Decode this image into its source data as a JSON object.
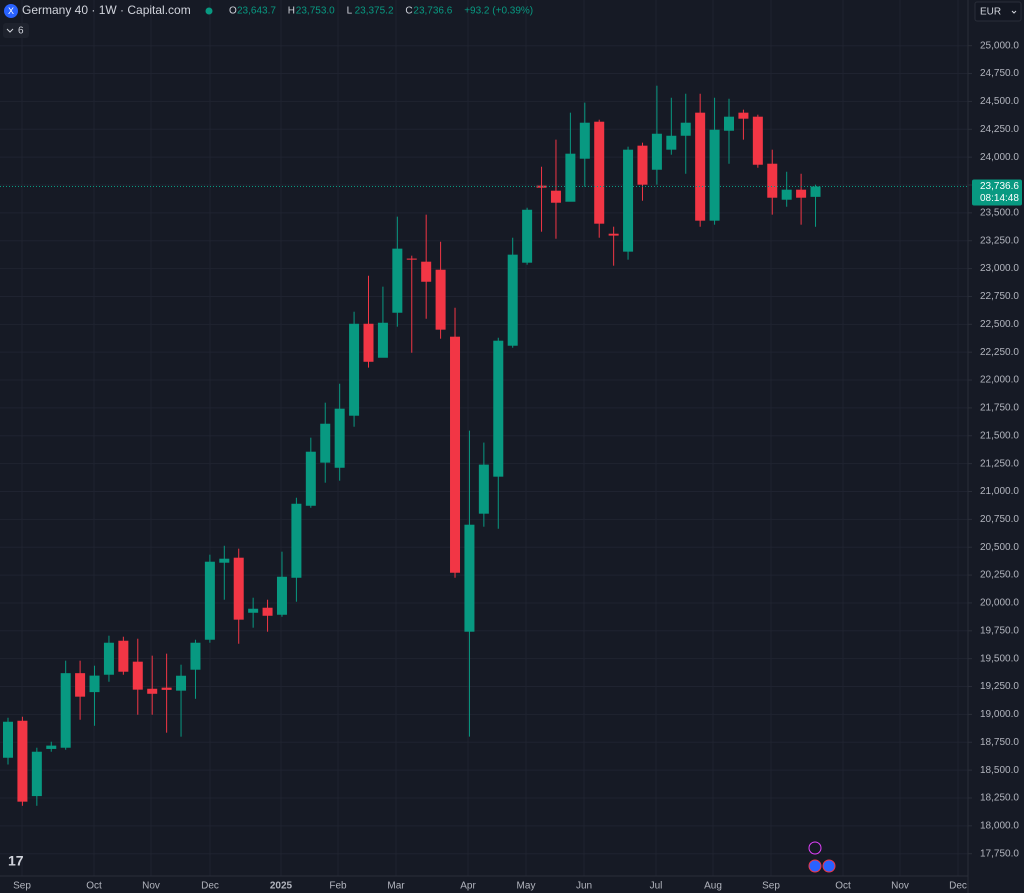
{
  "header": {
    "symbol": "Germany 40 · 1W · Capital.com",
    "legend": [
      {
        "key": "O",
        "value": "23,643.7"
      },
      {
        "key": "H",
        "value": "23,753.0"
      },
      {
        "key": "L",
        "value": "23,375.2"
      },
      {
        "key": "C",
        "value": "23,736.6"
      }
    ],
    "change": "+93.2 (+0.39%)",
    "indicator_count": "6",
    "currency": "EUR"
  },
  "price_label": {
    "price": "23,736.6",
    "countdown": "08:14:48"
  },
  "chart_data": {
    "type": "candlestick",
    "up_color": "#089981",
    "down_color": "#f23645",
    "grid": true,
    "x_labels": [
      "Sep",
      "Oct",
      "Nov",
      "Dec",
      "2025",
      "Feb",
      "Mar",
      "Apr",
      "May",
      "Jun",
      "Jul",
      "Aug",
      "Sep",
      "Oct",
      "Nov",
      "Dec"
    ],
    "open": [
      18611,
      18943,
      18267,
      18690,
      18701,
      19370,
      19200,
      19356,
      19661,
      19473,
      19230,
      19240,
      19213,
      19401,
      19670,
      20361,
      20406,
      19912,
      19957,
      19894,
      20226,
      20872,
      21259,
      21213,
      21680,
      22505,
      22200,
      22604,
      23090,
      23062,
      22990,
      22389,
      19742,
      20801,
      21133,
      22308,
      23053,
      23744,
      23699,
      23600,
      23986,
      24318,
      23313,
      23152,
      24103,
      23887,
      24067,
      24192,
      24399,
      23430,
      24237,
      24399,
      24363,
      23941,
      23618,
      23708,
      23643.7
    ],
    "high": [
      18970,
      18979,
      18701,
      18755,
      19482,
      19482,
      19437,
      19706,
      19697,
      19679,
      19527,
      19545,
      19446,
      19670,
      20433,
      20513,
      20487,
      20047,
      20029,
      20460,
      20944,
      21483,
      21797,
      21967,
      22613,
      22936,
      22838,
      23466,
      23116,
      23484,
      23241,
      22649,
      21546,
      21439,
      22380,
      23277,
      23546,
      23914,
      24157,
      24399,
      24489,
      24336,
      23376,
      24094,
      24130,
      24641,
      24533,
      24569,
      24569,
      24533,
      24524,
      24426,
      24381,
      24067,
      23869,
      23851,
      23753.0
    ],
    "low": [
      18550,
      18180,
      18180,
      18665,
      18683,
      18952,
      18898,
      19293,
      19356,
      18997,
      18997,
      18836,
      18800,
      19140,
      19643,
      20029,
      19634,
      19778,
      19742,
      19876,
      20011,
      20854,
      21079,
      21097,
      21581,
      22111,
      22209,
      22479,
      22245,
      22550,
      22371,
      20226,
      18800,
      20684,
      20666,
      22290,
      23035,
      23331,
      23268,
      23609,
      23735,
      23277,
      23026,
      23080,
      23609,
      23753,
      24022,
      23851,
      23376,
      23394,
      23941,
      24157,
      23905,
      23484,
      23555,
      23394,
      23375.2
    ],
    "close": [
      18934,
      18217,
      18665,
      18720,
      19370,
      19159,
      19348,
      19643,
      19383,
      19222,
      19185,
      19220,
      19347,
      19643,
      20370,
      20397,
      19850,
      19948,
      19885,
      20235,
      20890,
      21357,
      21608,
      21743,
      22505,
      22164,
      22514,
      23179,
      23080,
      22882,
      22452,
      20271,
      20702,
      21241,
      22353,
      23125,
      23528,
      23726,
      23591,
      24031,
      24309,
      23403,
      23296,
      24067,
      23753,
      24210,
      24192,
      24309,
      23430,
      24246,
      24363,
      24345,
      23932,
      23636,
      23708,
      23636,
      23736.6
    ],
    "ylim": [
      17550,
      25410
    ],
    "yticks": [
      {
        "value": 17750,
        "label": "17,750.0"
      },
      {
        "value": 18000,
        "label": "18,000.0"
      },
      {
        "value": 18250,
        "label": "18,250.0"
      },
      {
        "value": 18500,
        "label": "18,500.0"
      },
      {
        "value": 18750,
        "label": "18,750.0"
      },
      {
        "value": 19000,
        "label": "19,000.0"
      },
      {
        "value": 19250,
        "label": "19,250.0"
      },
      {
        "value": 19500,
        "label": "19,500.0"
      },
      {
        "value": 19750,
        "label": "19,750.0"
      },
      {
        "value": 20000,
        "label": "20,000.0"
      },
      {
        "value": 20250,
        "label": "20,250.0"
      },
      {
        "value": 20500,
        "label": "20,500.0"
      },
      {
        "value": 20750,
        "label": "20,750.0"
      },
      {
        "value": 21000,
        "label": "21,000.0"
      },
      {
        "value": 21250,
        "label": "21,250.0"
      },
      {
        "value": 21500,
        "label": "21,500.0"
      },
      {
        "value": 21750,
        "label": "21,750.0"
      },
      {
        "value": 22000,
        "label": "22,000.0"
      },
      {
        "value": 22250,
        "label": "22,250.0"
      },
      {
        "value": 22500,
        "label": "22,500.0"
      },
      {
        "value": 22750,
        "label": "22,750.0"
      },
      {
        "value": 23000,
        "label": "23,000.0"
      },
      {
        "value": 23250,
        "label": "23,250.0"
      },
      {
        "value": 23500,
        "label": "23,500.0"
      },
      {
        "value": 23750,
        "label": "23,750.0"
      },
      {
        "value": 24000,
        "label": "24,000.0"
      },
      {
        "value": 24250,
        "label": "24,250.0"
      },
      {
        "value": 24500,
        "label": "24,500.0"
      },
      {
        "value": 24750,
        "label": "24,750.0"
      },
      {
        "value": 25000,
        "label": "25,000.0"
      }
    ]
  }
}
